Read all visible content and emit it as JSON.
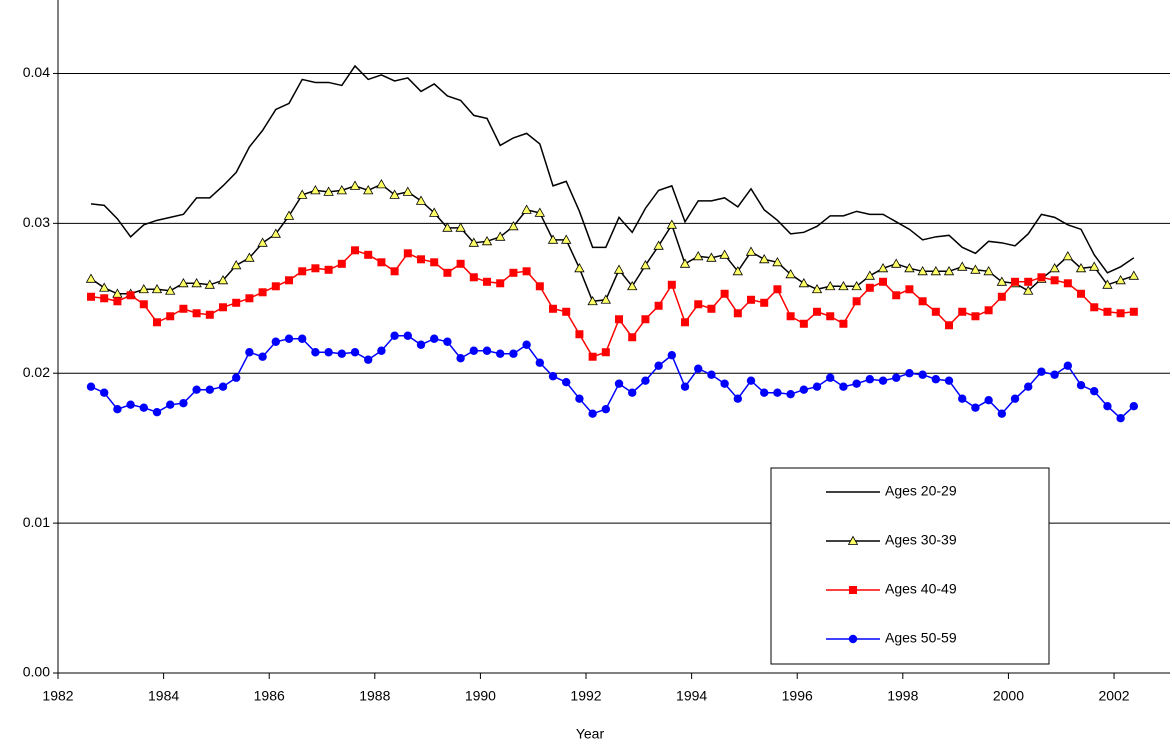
{
  "chart_data": {
    "type": "line",
    "x_label": "Year",
    "x": [
      1982.625,
      1982.875,
      1983.125,
      1983.375,
      1983.625,
      1983.875,
      1984.125,
      1984.375,
      1984.625,
      1984.875,
      1985.125,
      1985.375,
      1985.625,
      1985.875,
      1986.125,
      1986.375,
      1986.625,
      1986.875,
      1987.125,
      1987.375,
      1987.625,
      1987.875,
      1988.125,
      1988.375,
      1988.625,
      1988.875,
      1989.125,
      1989.375,
      1989.625,
      1989.875,
      1990.125,
      1990.375,
      1990.625,
      1990.875,
      1991.125,
      1991.375,
      1991.625,
      1991.875,
      1992.125,
      1992.375,
      1992.625,
      1992.875,
      1993.125,
      1993.375,
      1993.625,
      1993.875,
      1994.125,
      1994.375,
      1994.625,
      1994.875,
      1995.125,
      1995.375,
      1995.625,
      1995.875,
      1996.125,
      1996.375,
      1996.625,
      1996.875,
      1997.125,
      1997.375,
      1997.625,
      1997.875,
      1998.125,
      1998.375,
      1998.625,
      1998.875,
      1999.125,
      1999.375,
      1999.625,
      1999.875,
      2000.125,
      2000.375,
      2000.625,
      2000.875,
      2001.125,
      2001.375,
      2001.625,
      2001.875,
      2002.125,
      2002.375
    ],
    "series": [
      {
        "name": "Ages 20-29",
        "color": "#000000",
        "marker": "none",
        "values": [
          0.0313,
          0.0312,
          0.0303,
          0.0291,
          0.0299,
          0.0302,
          0.0304,
          0.0306,
          0.0317,
          0.0317,
          0.0325,
          0.0334,
          0.0351,
          0.0362,
          0.0376,
          0.038,
          0.0396,
          0.0394,
          0.0394,
          0.0392,
          0.0405,
          0.0396,
          0.0399,
          0.0395,
          0.0397,
          0.0388,
          0.0393,
          0.0385,
          0.0382,
          0.0372,
          0.037,
          0.0352,
          0.0357,
          0.036,
          0.0353,
          0.0325,
          0.0328,
          0.0308,
          0.0284,
          0.0284,
          0.0304,
          0.0294,
          0.031,
          0.0322,
          0.0325,
          0.0301,
          0.0315,
          0.0315,
          0.0317,
          0.0311,
          0.0323,
          0.0309,
          0.0302,
          0.0293,
          0.0294,
          0.0298,
          0.0305,
          0.0305,
          0.0308,
          0.0306,
          0.0306,
          0.0301,
          0.0296,
          0.0289,
          0.0291,
          0.0292,
          0.0284,
          0.028,
          0.0288,
          0.0287,
          0.0285,
          0.0293,
          0.0306,
          0.0304,
          0.0299,
          0.0296,
          0.0279,
          0.0267,
          0.0271,
          0.0277
        ]
      },
      {
        "name": "Ages 30-39",
        "color": "#000000",
        "marker": "triangle",
        "marker_fill": "#ffff66",
        "values": [
          0.0263,
          0.0257,
          0.0253,
          0.0253,
          0.0256,
          0.0256,
          0.0255,
          0.026,
          0.026,
          0.0259,
          0.0262,
          0.0272,
          0.0277,
          0.0287,
          0.0293,
          0.0305,
          0.0319,
          0.0322,
          0.0321,
          0.0322,
          0.0325,
          0.0322,
          0.0326,
          0.0319,
          0.0321,
          0.0315,
          0.0307,
          0.0297,
          0.0297,
          0.0287,
          0.0288,
          0.0291,
          0.0298,
          0.0309,
          0.0307,
          0.0289,
          0.0289,
          0.027,
          0.0248,
          0.0249,
          0.0269,
          0.0258,
          0.0272,
          0.0285,
          0.0299,
          0.0273,
          0.0278,
          0.0277,
          0.0279,
          0.0268,
          0.0281,
          0.0276,
          0.0274,
          0.0266,
          0.026,
          0.0256,
          0.0258,
          0.0258,
          0.0258,
          0.0265,
          0.027,
          0.0273,
          0.027,
          0.0268,
          0.0268,
          0.0268,
          0.0271,
          0.0269,
          0.0268,
          0.0261,
          0.026,
          0.0255,
          0.0263,
          0.027,
          0.0278,
          0.027,
          0.0271,
          0.0259,
          0.0262,
          0.0265
        ]
      },
      {
        "name": "Ages 40-49",
        "color": "#ff0000",
        "marker": "square",
        "marker_fill": "#ff0000",
        "values": [
          0.0251,
          0.025,
          0.0248,
          0.0252,
          0.0246,
          0.0234,
          0.0238,
          0.0243,
          0.024,
          0.0239,
          0.0244,
          0.0247,
          0.025,
          0.0254,
          0.0258,
          0.0262,
          0.0268,
          0.027,
          0.0269,
          0.0273,
          0.0282,
          0.0279,
          0.0274,
          0.0268,
          0.028,
          0.0276,
          0.0274,
          0.0267,
          0.0273,
          0.0264,
          0.0261,
          0.026,
          0.0267,
          0.0268,
          0.0258,
          0.0243,
          0.0241,
          0.0226,
          0.0211,
          0.0214,
          0.0236,
          0.0224,
          0.0236,
          0.0245,
          0.0259,
          0.0234,
          0.0246,
          0.0243,
          0.0253,
          0.024,
          0.0249,
          0.0247,
          0.0256,
          0.0238,
          0.0233,
          0.0241,
          0.0238,
          0.0233,
          0.0248,
          0.0257,
          0.0261,
          0.0252,
          0.0256,
          0.0248,
          0.0241,
          0.0232,
          0.0241,
          0.0238,
          0.0242,
          0.0251,
          0.0261,
          0.0261,
          0.0264,
          0.0262,
          0.026,
          0.0253,
          0.0244,
          0.0241,
          0.024,
          0.0241
        ]
      },
      {
        "name": "Ages 50-59",
        "color": "#0000ff",
        "marker": "circle",
        "marker_fill": "#0000ff",
        "values": [
          0.0191,
          0.0187,
          0.0176,
          0.0179,
          0.0177,
          0.0174,
          0.0179,
          0.018,
          0.0189,
          0.0189,
          0.0191,
          0.0197,
          0.0214,
          0.0211,
          0.0221,
          0.0223,
          0.0223,
          0.0214,
          0.0214,
          0.0213,
          0.0214,
          0.0209,
          0.0215,
          0.0225,
          0.0225,
          0.0219,
          0.0223,
          0.0221,
          0.021,
          0.0215,
          0.0215,
          0.0213,
          0.0213,
          0.0219,
          0.0207,
          0.0198,
          0.0194,
          0.0183,
          0.0173,
          0.0176,
          0.0193,
          0.0187,
          0.0195,
          0.0205,
          0.0212,
          0.0191,
          0.0203,
          0.0199,
          0.0193,
          0.0183,
          0.0195,
          0.0187,
          0.0187,
          0.0186,
          0.0189,
          0.0191,
          0.0197,
          0.0191,
          0.0193,
          0.0196,
          0.0195,
          0.0197,
          0.02,
          0.0199,
          0.0196,
          0.0195,
          0.0183,
          0.0177,
          0.0182,
          0.0173,
          0.0183,
          0.0191,
          0.0201,
          0.0199,
          0.0205,
          0.0192,
          0.0188,
          0.0178,
          0.017,
          0.0178
        ]
      }
    ],
    "xlim": [
      1982,
      2003.06
    ],
    "xticks": [
      1982,
      1984,
      1986,
      1988,
      1990,
      1992,
      1994,
      1996,
      1998,
      2000,
      2002
    ],
    "ylim": [
      0,
      0.0449
    ],
    "yticks": [
      {
        "value": 0,
        "label": "0.00"
      },
      0.01,
      0.02,
      0.03,
      0.04
    ],
    "grid": true,
    "legend": "lower right"
  }
}
